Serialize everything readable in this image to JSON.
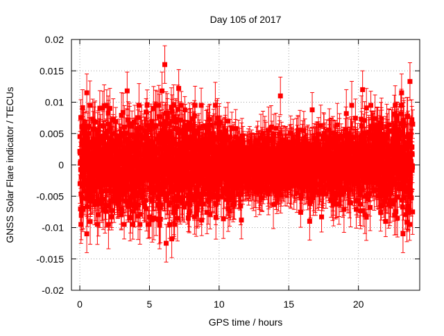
{
  "chart_data": {
    "type": "scatter",
    "title": "Day 105 of 2017",
    "xlabel": "GPS time / hours",
    "ylabel": "GNSS Solar Flare indicator / TECUs",
    "xlim": [
      -0.6,
      24.4
    ],
    "ylim": [
      -0.02,
      0.02
    ],
    "xticks": [
      0,
      5,
      10,
      15,
      20
    ],
    "xtick_labels": [
      "0",
      "5",
      "10",
      "15",
      "20"
    ],
    "yticks": [
      -0.02,
      -0.015,
      -0.01,
      -0.005,
      0,
      0.005,
      0.01,
      0.015,
      0.02
    ],
    "ytick_labels": [
      "-0.02",
      "-0.015",
      "-0.01",
      "-0.005",
      "0",
      "0.005",
      "0.01",
      "0.015",
      "0.02"
    ],
    "grid": true,
    "legend": "none",
    "series": [
      {
        "name": "Solar flare indicator",
        "marker": "square",
        "errorbars": true,
        "color": "#ff0000",
        "x_range": [
          0,
          23.9
        ],
        "x_step_hours": 0.0083,
        "num_points": 2880,
        "mean": 0.0,
        "typical_error": 0.003,
        "amplitude_profile": {
          "hours": [
            0,
            2,
            4,
            5,
            6,
            7,
            8,
            9,
            10,
            11,
            12,
            13,
            14,
            15,
            16,
            17,
            18,
            19,
            20,
            21,
            22,
            23,
            24
          ],
          "spread": [
            0.0045,
            0.0045,
            0.0045,
            0.005,
            0.0055,
            0.005,
            0.0045,
            0.004,
            0.0035,
            0.003,
            0.0025,
            0.0025,
            0.0025,
            0.0025,
            0.0028,
            0.003,
            0.0033,
            0.0035,
            0.0035,
            0.0038,
            0.004,
            0.0045,
            0.0045
          ]
        },
        "notable_points": [
          {
            "x": 6.1,
            "y": 0.016
          },
          {
            "x": 6.2,
            "y": -0.0125
          },
          {
            "x": 0.5,
            "y": 0.0115
          },
          {
            "x": 0.5,
            "y": -0.011
          },
          {
            "x": 3.4,
            "y": 0.0118
          },
          {
            "x": 5.9,
            "y": 0.0118
          },
          {
            "x": 7.1,
            "y": 0.0122
          },
          {
            "x": 6.6,
            "y": -0.0118
          },
          {
            "x": 14.4,
            "y": 0.011
          },
          {
            "x": 11.6,
            "y": -0.0088
          },
          {
            "x": 16.5,
            "y": -0.009
          },
          {
            "x": 20.3,
            "y": 0.012
          },
          {
            "x": 23.1,
            "y": 0.0115
          },
          {
            "x": 23.7,
            "y": 0.0133
          },
          {
            "x": 23.2,
            "y": -0.011
          },
          {
            "x": 22.8,
            "y": -0.0085
          }
        ]
      }
    ]
  }
}
